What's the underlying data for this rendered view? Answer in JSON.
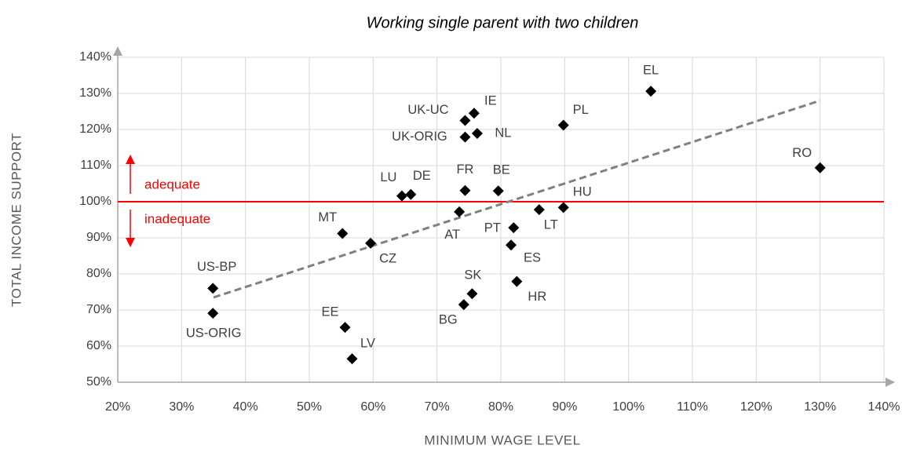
{
  "chart_data": {
    "type": "scatter",
    "title": "Working single parent with two children",
    "x_label": "MINIMUM WAGE LEVEL",
    "y_label": "TOTAL INCOME SUPPORT",
    "point_labels": [
      "EL",
      "PL",
      "RO",
      "IE",
      "UK-UC",
      "UK-ORIG",
      "NL",
      "LU",
      "DE",
      "FR",
      "BE",
      "HU",
      "LT",
      "AT",
      "PT",
      "ES",
      "MT",
      "CZ",
      "US-BP",
      "US-ORIG",
      "SK",
      "HR",
      "BG",
      "EE",
      "LV"
    ],
    "x": [
      103.5,
      89.8,
      130,
      75.8,
      74.4,
      74.4,
      76.3,
      64.5,
      65.9,
      74.4,
      79.6,
      89.8,
      86,
      73.5,
      82,
      81.6,
      55.2,
      59.6,
      34.9,
      34.9,
      75.5,
      82.5,
      74.2,
      55.6,
      56.7
    ],
    "values": [
      130.6,
      121.2,
      109.4,
      124.5,
      122.5,
      117.9,
      118.9,
      101.6,
      102,
      103.1,
      103,
      98.4,
      97.8,
      97.2,
      92.8,
      88,
      91.2,
      88.5,
      76,
      69.1,
      74.5,
      77.9,
      71.5,
      65.2,
      56.5
    ],
    "color": "#000000",
    "trendline": {
      "x": [
        35,
        130
      ],
      "y": [
        73.5,
        128
      ]
    },
    "trendline_color": "#808080",
    "reference_line": 100,
    "reference_color": "#ff0000",
    "annotations": {
      "above": "adequate",
      "below": "inadequate"
    },
    "xlim": [
      20,
      140
    ],
    "ylim": [
      50,
      140
    ],
    "xticks": [
      {
        "value": 20,
        "label": "20%"
      },
      {
        "value": 30,
        "label": "30%"
      },
      {
        "value": 40,
        "label": "40%"
      },
      {
        "value": 50,
        "label": "50%"
      },
      {
        "value": 60,
        "label": "60%"
      },
      {
        "value": 70,
        "label": "70%"
      },
      {
        "value": 80,
        "label": "80%"
      },
      {
        "value": 90,
        "label": "90%"
      },
      {
        "value": 100,
        "label": "100%"
      },
      {
        "value": 110,
        "label": "110%"
      },
      {
        "value": 120,
        "label": "120%"
      },
      {
        "value": 130,
        "label": "130%"
      },
      {
        "value": 140,
        "label": "140%"
      }
    ],
    "yticks": [
      {
        "value": 50,
        "label": "50%"
      },
      {
        "value": 60,
        "label": "60%"
      },
      {
        "value": 70,
        "label": "70%"
      },
      {
        "value": 80,
        "label": "80%"
      },
      {
        "value": 90,
        "label": "90%"
      },
      {
        "value": 100,
        "label": "100%"
      },
      {
        "value": 110,
        "label": "110%"
      },
      {
        "value": 120,
        "label": "120%"
      },
      {
        "value": 130,
        "label": "130%"
      },
      {
        "value": 140,
        "label": "140%"
      }
    ],
    "grid": true
  }
}
